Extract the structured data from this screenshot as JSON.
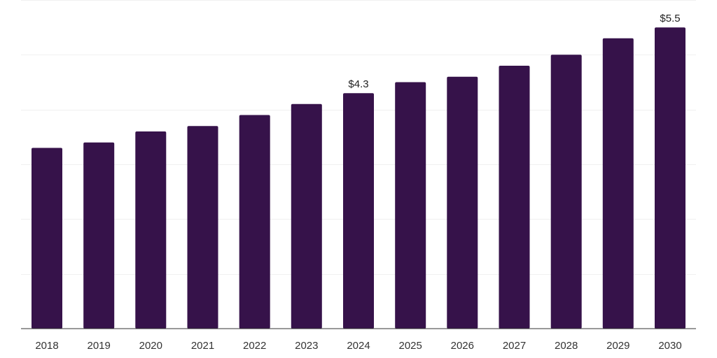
{
  "chart_data": {
    "type": "bar",
    "categories": [
      "2018",
      "2019",
      "2020",
      "2021",
      "2022",
      "2023",
      "2024",
      "2025",
      "2026",
      "2027",
      "2028",
      "2029",
      "2030"
    ],
    "values": [
      3.3,
      3.4,
      3.6,
      3.7,
      3.9,
      4.1,
      4.3,
      4.5,
      4.6,
      4.8,
      5.0,
      5.3,
      5.5
    ],
    "data_labels": [
      {
        "index": 6,
        "text": "$4.3"
      },
      {
        "index": 12,
        "text": "$5.5"
      }
    ],
    "title": "",
    "xlabel": "",
    "ylabel": "",
    "ylim": [
      0,
      6
    ],
    "grid": true,
    "legend": "none",
    "bar_color": "#36124a"
  }
}
